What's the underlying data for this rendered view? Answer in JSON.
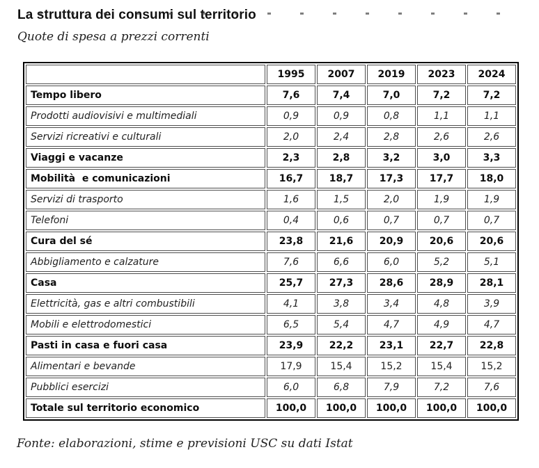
{
  "page": {
    "title": "La struttura dei consumi sul territorio",
    "subtitle": "Quote di spesa a prezzi correnti",
    "source": "Fonte: elaborazioni, stime e previsioni USC su dati Istat"
  },
  "colors": {
    "outer_border": "#000000",
    "cell_border": "#4d4d4d"
  },
  "chart_data": {
    "type": "table",
    "title": "La struttura dei consumi sul territorio",
    "subtitle": "Quote di spesa a prezzi correnti",
    "source": "Fonte: elaborazioni, stime e previsioni USC su dati Istat",
    "unit": "quote di spesa, %",
    "columns": [
      "",
      "1995",
      "2007",
      "2019",
      "2023",
      "2024"
    ],
    "rows": [
      {
        "label": "Tempo libero",
        "style": "category",
        "values": [
          "7,6",
          "7,4",
          "7,0",
          "7,2",
          "7,2"
        ]
      },
      {
        "label": "Prodotti audiovisivi e multimediali",
        "style": "subcategory",
        "values": [
          "0,9",
          "0,9",
          "0,8",
          "1,1",
          "1,1"
        ]
      },
      {
        "label": "Servizi ricreativi e culturali",
        "style": "subcategory",
        "values": [
          "2,0",
          "2,4",
          "2,8",
          "2,6",
          "2,6"
        ]
      },
      {
        "label": "Viaggi e vacanze",
        "style": "category",
        "values": [
          "2,3",
          "2,8",
          "3,2",
          "3,0",
          "3,3"
        ]
      },
      {
        "label": "Mobilità  e comunicazioni",
        "style": "category",
        "values": [
          "16,7",
          "18,7",
          "17,3",
          "17,7",
          "18,0"
        ]
      },
      {
        "label": "Servizi di trasporto",
        "style": "subcategory",
        "values": [
          "1,6",
          "1,5",
          "2,0",
          "1,9",
          "1,9"
        ]
      },
      {
        "label": "Telefoni",
        "style": "subcategory",
        "values": [
          "0,4",
          "0,6",
          "0,7",
          "0,7",
          "0,7"
        ]
      },
      {
        "label": "Cura del sé",
        "style": "category",
        "values": [
          "23,8",
          "21,6",
          "20,9",
          "20,6",
          "20,6"
        ]
      },
      {
        "label": "Abbigliamento e calzature",
        "style": "subcategory",
        "values": [
          "7,6",
          "6,6",
          "6,0",
          "5,2",
          "5,1"
        ]
      },
      {
        "label": "Casa",
        "style": "category",
        "values": [
          "25,7",
          "27,3",
          "28,6",
          "28,9",
          "28,1"
        ]
      },
      {
        "label": "Elettricità, gas e altri combustibili",
        "style": "subcategory",
        "values": [
          "4,1",
          "3,8",
          "3,4",
          "4,8",
          "3,9"
        ]
      },
      {
        "label": "Mobili e elettrodomestici",
        "style": "subcategory",
        "values": [
          "6,5",
          "5,4",
          "4,7",
          "4,9",
          "4,7"
        ]
      },
      {
        "label": "Pasti in casa e fuori casa",
        "style": "category",
        "values": [
          "23,9",
          "22,2",
          "23,1",
          "22,7",
          "22,8"
        ]
      },
      {
        "label": "Alimentari e bevande",
        "style": "subcategory",
        "values_style": "upright",
        "values": [
          "17,9",
          "15,4",
          "15,2",
          "15,4",
          "15,2"
        ]
      },
      {
        "label": "Pubblici esercizi",
        "style": "subcategory",
        "values": [
          "6,0",
          "6,8",
          "7,9",
          "7,2",
          "7,6"
        ]
      },
      {
        "label": "Totale sul territorio economico",
        "style": "total",
        "values": [
          "100,0",
          "100,0",
          "100,0",
          "100,0",
          "100,0"
        ]
      }
    ]
  }
}
